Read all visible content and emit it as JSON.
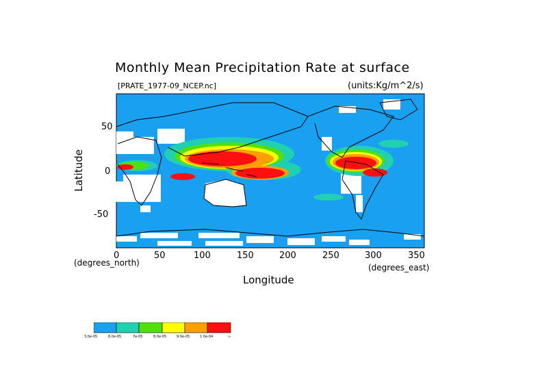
{
  "title": "Monthly Mean Precipitation Rate at surface",
  "file_label": "[PRATE_1977-09_NCEP.nc]",
  "units_label": "(units:Kg/m^2/s)",
  "y_axis_label": "Latitude",
  "x_axis_label": "Longitude",
  "y_units": "(degrees_north)",
  "x_units": "(degrees_east)",
  "x_ticks": [
    "0",
    "50",
    "100",
    "150",
    "200",
    "250",
    "300",
    "350"
  ],
  "y_ticks": [
    "50",
    "0",
    "-50"
  ],
  "legend": {
    "colors": [
      "#1ea0f0",
      "#20d0b0",
      "#50e010",
      "#ffff00",
      "#ffa000",
      "#ff1010"
    ],
    "labels": [
      "3.0e-05",
      "6.0e-05",
      "7e-05",
      "8.0e-05",
      "9.0e-05",
      "1.0e-04",
      "∞"
    ]
  },
  "colors": {
    "ocean": "#1aa0f0",
    "land": "#ffffff",
    "coast": "#000000"
  },
  "chart_data": {
    "type": "heatmap",
    "title": "Monthly Mean Precipitation Rate at surface",
    "xlabel": "Longitude",
    "ylabel": "Latitude",
    "xlim": [
      0,
      360
    ],
    "ylim": [
      -90,
      90
    ],
    "levels": [
      3e-05,
      6e-05,
      7e-05,
      8e-05,
      9e-05,
      0.0001
    ],
    "regions": [
      {
        "name": "",
        "lon": [
          100,
          155
        ],
        "lat": [
          0,
          20
        ],
        "level": "1.0e-04"
      },
      {
        "name": "",
        "lon": [
          150,
          200
        ],
        "lat": [
          -15,
          5
        ],
        "level": "1.0e-04"
      },
      {
        "name": "",
        "lon": [
          255,
          310
        ],
        "lat": [
          0,
          15
        ],
        "level": "1.0e-04"
      },
      {
        "name": "",
        "lon": [
          65,
          100
        ],
        "lat": [
          -10,
          0
        ],
        "level": "1.0e-04"
      },
      {
        "name": "",
        "lon": [
          110,
          150
        ],
        "lat": [
          20,
          35
        ],
        "level": "9.0e-05"
      }
    ]
  }
}
